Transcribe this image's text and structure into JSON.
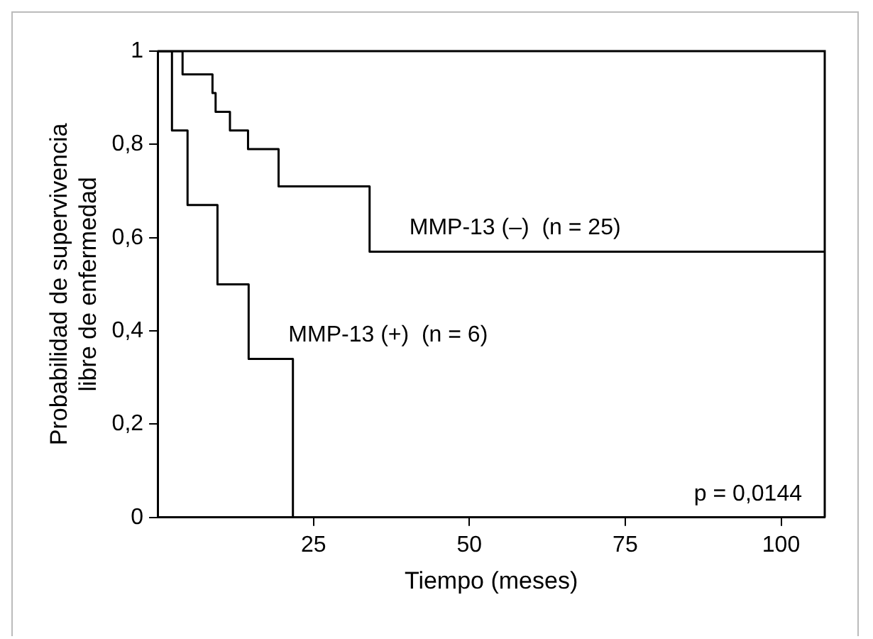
{
  "chart_data": {
    "type": "step",
    "xlabel": "Tiempo (meses)",
    "ylabel": "Probabilidad de supervivencia libre de enfermedad",
    "xlim": [
      0,
      107
    ],
    "xticks": [
      25,
      50,
      75,
      100
    ],
    "ylim": [
      0,
      1
    ],
    "yticks": [
      0,
      {
        "value": 0.2,
        "label": "0,2"
      },
      {
        "value": 0.4,
        "label": "0,4"
      },
      {
        "value": 0.6,
        "label": "0,6"
      },
      {
        "value": 0.8,
        "label": "0,8"
      },
      1
    ],
    "grid": false,
    "legend": false,
    "marker": "none",
    "line_style": "solid",
    "series": [
      {
        "name": "MMP-13 (–)  (n = 25)",
        "color": "#000000",
        "x": [
          0,
          4,
          8.8,
          9.3,
          11.6,
          14.5,
          19.4,
          34,
          107
        ],
        "values": [
          1,
          0.95,
          0.91,
          0.87,
          0.83,
          0.79,
          0.71,
          0.57,
          0.57
        ]
      },
      {
        "name": "MMP-13 (+)  (n = 6)",
        "color": "#000000",
        "x": [
          0,
          2.3,
          4.8,
          9.6,
          14.6,
          21.7
        ],
        "values": [
          1,
          0.83,
          0.67,
          0.5,
          0.34,
          0
        ]
      }
    ],
    "annotations": [
      "p = 0,0144"
    ]
  }
}
